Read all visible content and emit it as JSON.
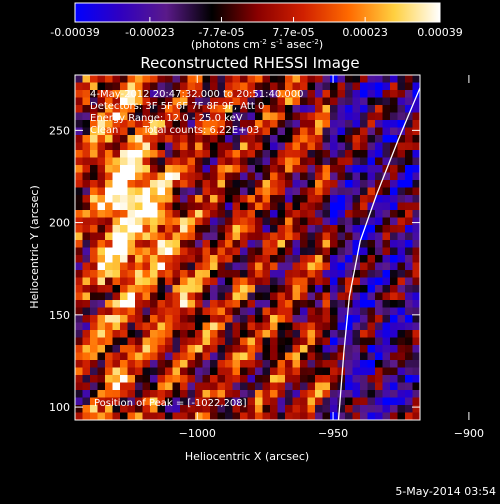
{
  "colorbar": {
    "tick_labels": [
      "-0.00039",
      "-0.00023",
      "-7.7e-05",
      "7.7e-05",
      "0.00023",
      "0.00039"
    ],
    "tick_values": [
      -0.00039,
      -0.00023,
      -7.7e-05,
      7.7e-05,
      0.00023,
      0.00039
    ],
    "units_text": "(photons cm",
    "units_exp1": "-2",
    "units_mid": " s",
    "units_exp2": "-1",
    "units_tail": " asec",
    "units_exp3": "-2",
    "units_close": ")",
    "colors": [
      "#0000ff",
      "#3000c0",
      "#5a1a8a",
      "#000000",
      "#8a0000",
      "#d02000",
      "#ff6a00",
      "#ffd040",
      "#ffffff"
    ]
  },
  "annotations": {
    "time": "4-May-2012 20:47:32.000 to 20:51:40.000",
    "detectors": "Detectors: 3F 5F 6F 7F 8F 9F, Att 0",
    "energy": "Energy Range: 12.0 - 25.0 keV",
    "clean_label": "Clean",
    "total_counts": "Total counts: 6.22E+03",
    "peak": "Position of Peak = [-1022,208]"
  },
  "footer": {
    "timestamp": "5-May-2014 03:54"
  },
  "chart_data": {
    "type": "heatmap",
    "title": "Reconstructed RHESSI Image",
    "xlabel": "Heliocentric X (arcsec)",
    "ylabel": "Heliocentric Y (arcsec)",
    "xlim": [
      -1045,
      -918
    ],
    "ylim": [
      93,
      280
    ],
    "xticks": [
      -1000,
      -950,
      -900
    ],
    "yticks": [
      100,
      150,
      200,
      250
    ],
    "xtick_labels": [
      "−1000",
      "−950",
      "−900"
    ],
    "ytick_labels": [
      "100",
      "150",
      "200",
      "250"
    ],
    "colormap_range": [
      -0.00039,
      0.00039
    ],
    "limb_curve": {
      "x": [
        -948,
        -946,
        -944,
        -940,
        -934,
        -926,
        -916
      ],
      "y": [
        93,
        130,
        160,
        190,
        215,
        245,
        280
      ]
    },
    "peak": {
      "x": -1022,
      "y": 208
    }
  }
}
